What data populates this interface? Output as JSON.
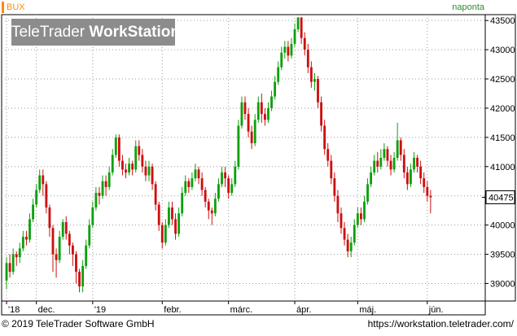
{
  "header": {
    "symbol": "BUX",
    "frequency": "naponta"
  },
  "watermark": {
    "brand": "TeleTrader",
    "product": "WorkStation"
  },
  "footer": {
    "copyright": "© 2019 TeleTrader Software GmbH",
    "url": "https://workstation.teletrader.com/"
  },
  "colors": {
    "up": "#0ea00e",
    "down": "#cc1010",
    "grid": "#9a9a9a",
    "last_label_bg": "#ffffff"
  },
  "chart_data": {
    "type": "candlestick",
    "ylim": [
      38700,
      43600
    ],
    "y_ticks": [
      39000,
      39500,
      40000,
      40500,
      41000,
      41500,
      42000,
      42500,
      43000,
      43500
    ],
    "y_tick_labels": [
      "39000",
      "39500",
      "40000",
      "40500",
      "41000",
      "41500",
      "42000",
      "42500",
      "43000",
      "43500"
    ],
    "x_labels": [
      {
        "label": "'18",
        "index": 0
      },
      {
        "label": "dec.",
        "index": 9
      },
      {
        "label": "'19",
        "index": 26
      },
      {
        "label": "febr.",
        "index": 47
      },
      {
        "label": "márc.",
        "index": 67
      },
      {
        "label": "ápr.",
        "index": 87
      },
      {
        "label": "máj.",
        "index": 106
      },
      {
        "label": "jún.",
        "index": 127
      }
    ],
    "last_value": "40475",
    "last_value_num": 40475,
    "total_slots": 145,
    "candles": [
      [
        39050,
        39350,
        38900,
        39450
      ],
      [
        39350,
        39200,
        39100,
        39500
      ],
      [
        39200,
        39500,
        39150,
        39600
      ],
      [
        39500,
        39450,
        39300,
        39550
      ],
      [
        39450,
        39600,
        39350,
        39700
      ],
      [
        39600,
        39800,
        39550,
        39900
      ],
      [
        39800,
        39750,
        39650,
        39900
      ],
      [
        39750,
        40100,
        39700,
        40200
      ],
      [
        40100,
        40350,
        40050,
        40450
      ],
      [
        40350,
        40600,
        40300,
        40700
      ],
      [
        40600,
        40850,
        40550,
        40950
      ],
      [
        40850,
        40700,
        40500,
        40950
      ],
      [
        40700,
        40300,
        40200,
        40750
      ],
      [
        40300,
        39950,
        39800,
        40350
      ],
      [
        39950,
        39500,
        39200,
        40000
      ],
      [
        39500,
        39400,
        39100,
        39600
      ],
      [
        39400,
        39800,
        39350,
        39900
      ],
      [
        39800,
        40050,
        39750,
        40100
      ],
      [
        40050,
        39850,
        39750,
        40150
      ],
      [
        39850,
        39650,
        39500,
        39900
      ],
      [
        39650,
        39500,
        39300,
        39700
      ],
      [
        39500,
        39200,
        39000,
        39550
      ],
      [
        39200,
        38950,
        38850,
        39250
      ],
      [
        38950,
        39300,
        38850,
        39400
      ],
      [
        39300,
        39650,
        39250,
        39750
      ],
      [
        39650,
        40000,
        39600,
        40100
      ],
      [
        40000,
        40300,
        39950,
        40400
      ],
      [
        40300,
        40550,
        40250,
        40650
      ],
      [
        40550,
        40500,
        40350,
        40650
      ],
      [
        40500,
        40750,
        40450,
        40850
      ],
      [
        40750,
        40650,
        40500,
        40850
      ],
      [
        40650,
        40900,
        40600,
        41000
      ],
      [
        40900,
        41200,
        40850,
        41300
      ],
      [
        41200,
        41500,
        41150,
        41550
      ],
      [
        41500,
        41100,
        41000,
        41550
      ],
      [
        41100,
        40950,
        40850,
        41200
      ],
      [
        40950,
        40900,
        40800,
        41050
      ],
      [
        40900,
        41050,
        40850,
        41150
      ],
      [
        41050,
        40950,
        40850,
        41100
      ],
      [
        40950,
        41350,
        40900,
        41450
      ],
      [
        41350,
        41200,
        41100,
        41450
      ],
      [
        41200,
        41000,
        40900,
        41300
      ],
      [
        41000,
        40850,
        40750,
        41100
      ],
      [
        40850,
        41000,
        40750,
        41100
      ],
      [
        41000,
        40700,
        40600,
        41050
      ],
      [
        40700,
        40350,
        40250,
        40750
      ],
      [
        40350,
        40000,
        39900,
        40400
      ],
      [
        40000,
        39700,
        39600,
        40050
      ],
      [
        39700,
        40000,
        39650,
        40100
      ],
      [
        40000,
        40300,
        39950,
        40400
      ],
      [
        40300,
        40100,
        40000,
        40400
      ],
      [
        40100,
        39850,
        39750,
        40200
      ],
      [
        39850,
        40200,
        39800,
        40300
      ],
      [
        40200,
        40550,
        40150,
        40650
      ],
      [
        40550,
        40750,
        40500,
        40850
      ],
      [
        40750,
        40650,
        40550,
        40800
      ],
      [
        40650,
        40800,
        40600,
        40900
      ],
      [
        40800,
        40950,
        40750,
        41050
      ],
      [
        40950,
        40800,
        40700,
        41000
      ],
      [
        40800,
        40600,
        40500,
        40900
      ],
      [
        40600,
        40400,
        40300,
        40650
      ],
      [
        40400,
        40250,
        40100,
        40450
      ],
      [
        40250,
        40200,
        40000,
        40300
      ],
      [
        40200,
        40450,
        40150,
        40550
      ],
      [
        40450,
        40700,
        40400,
        40800
      ],
      [
        40700,
        40900,
        40650,
        41000
      ],
      [
        40900,
        40800,
        40650,
        41000
      ],
      [
        40800,
        40550,
        40450,
        40850
      ],
      [
        40550,
        40700,
        40500,
        40800
      ],
      [
        40700,
        41000,
        40650,
        41100
      ],
      [
        41000,
        41700,
        40950,
        41800
      ],
      [
        41700,
        42100,
        41650,
        42200
      ],
      [
        42100,
        41900,
        41800,
        42200
      ],
      [
        41900,
        41600,
        41500,
        42000
      ],
      [
        41600,
        41400,
        41300,
        41700
      ],
      [
        41400,
        41800,
        41350,
        41900
      ],
      [
        41800,
        42100,
        41750,
        42200
      ],
      [
        42100,
        41900,
        41750,
        42250
      ],
      [
        41900,
        41800,
        41700,
        42000
      ],
      [
        41800,
        42000,
        41750,
        42100
      ],
      [
        42000,
        42200,
        41950,
        42300
      ],
      [
        42200,
        42450,
        42150,
        42550
      ],
      [
        42450,
        42700,
        42400,
        42800
      ],
      [
        42700,
        42950,
        42650,
        43050
      ],
      [
        42950,
        43050,
        42850,
        43150
      ],
      [
        43050,
        42900,
        42800,
        43150
      ],
      [
        42900,
        43100,
        42850,
        43200
      ],
      [
        43100,
        43350,
        43050,
        43450
      ],
      [
        43350,
        43550,
        43300,
        43560
      ],
      [
        43550,
        43200,
        43100,
        43560
      ],
      [
        43200,
        43000,
        42900,
        43300
      ],
      [
        43000,
        42700,
        42600,
        43100
      ],
      [
        42700,
        42450,
        42350,
        42800
      ],
      [
        42450,
        42500,
        42300,
        42600
      ],
      [
        42500,
        42100,
        42000,
        42550
      ],
      [
        42100,
        41700,
        41600,
        42200
      ],
      [
        41700,
        41300,
        41200,
        41800
      ],
      [
        41300,
        41100,
        41000,
        41400
      ],
      [
        41100,
        40800,
        40700,
        41200
      ],
      [
        40800,
        40500,
        40400,
        40900
      ],
      [
        40500,
        40200,
        40050,
        40600
      ],
      [
        40200,
        39950,
        39850,
        40300
      ],
      [
        39950,
        39750,
        39650,
        40050
      ],
      [
        39750,
        39550,
        39450,
        39850
      ],
      [
        39550,
        39700,
        39450,
        39800
      ],
      [
        39700,
        40000,
        39650,
        40100
      ],
      [
        40000,
        40200,
        39950,
        40300
      ],
      [
        40200,
        40100,
        40000,
        40300
      ],
      [
        40100,
        40400,
        40050,
        40500
      ],
      [
        40400,
        40700,
        40350,
        40800
      ],
      [
        40700,
        40900,
        40650,
        41000
      ],
      [
        40900,
        41100,
        40850,
        41200
      ],
      [
        41100,
        41000,
        40900,
        41250
      ],
      [
        41000,
        41150,
        40950,
        41300
      ],
      [
        41150,
        41300,
        41100,
        41400
      ],
      [
        41300,
        41100,
        41000,
        41350
      ],
      [
        41100,
        40950,
        40850,
        41200
      ],
      [
        40950,
        41150,
        40900,
        41250
      ],
      [
        41150,
        41450,
        41100,
        41750
      ],
      [
        41450,
        41200,
        41100,
        41500
      ],
      [
        41200,
        40900,
        40800,
        41300
      ],
      [
        40900,
        40700,
        40600,
        41000
      ],
      [
        40700,
        40950,
        40650,
        41050
      ],
      [
        40950,
        41150,
        40900,
        41250
      ],
      [
        41150,
        41000,
        40900,
        41200
      ],
      [
        41000,
        40800,
        40700,
        41100
      ],
      [
        40800,
        40650,
        40550,
        40900
      ],
      [
        40650,
        40500,
        40400,
        40750
      ],
      [
        40500,
        40475,
        40200,
        40600
      ]
    ]
  }
}
